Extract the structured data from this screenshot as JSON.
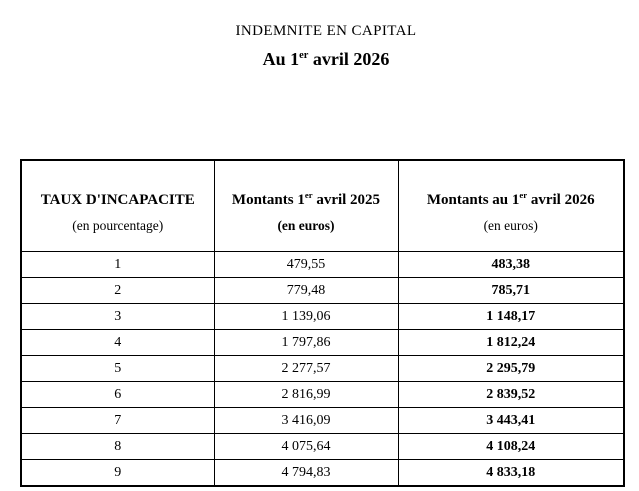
{
  "header": {
    "title": "INDEMNITE EN CAPITAL",
    "subtitle_prefix": "Au 1",
    "subtitle_sup": "er",
    "subtitle_suffix": " avril 2026"
  },
  "table": {
    "columns": [
      {
        "title": "TAUX D'INCAPACITE",
        "subtitle": "(en pourcentage)"
      },
      {
        "title_prefix": "Montants 1",
        "title_sup": "er",
        "title_suffix": " avril 2025",
        "subtitle": "(en euros)"
      },
      {
        "title_prefix": "Montants au 1",
        "title_sup": "er",
        "title_suffix": " avril 2026",
        "subtitle": "(en euros)"
      }
    ],
    "rows": [
      {
        "taux": "1",
        "amount_2025": "479,55",
        "amount_2026": "483,38"
      },
      {
        "taux": "2",
        "amount_2025": "779,48",
        "amount_2026": "785,71"
      },
      {
        "taux": "3",
        "amount_2025": "1 139,06",
        "amount_2026": "1 148,17"
      },
      {
        "taux": "4",
        "amount_2025": "1 797,86",
        "amount_2026": "1 812,24"
      },
      {
        "taux": "5",
        "amount_2025": "2 277,57",
        "amount_2026": "2 295,79"
      },
      {
        "taux": "6",
        "amount_2025": "2 816,99",
        "amount_2026": "2 839,52"
      },
      {
        "taux": "7",
        "amount_2025": "3 416,09",
        "amount_2026": "3 443,41"
      },
      {
        "taux": "8",
        "amount_2025": "4 075,64",
        "amount_2026": "4 108,24"
      },
      {
        "taux": "9",
        "amount_2025": "4 794,83",
        "amount_2026": "4 833,18"
      }
    ]
  }
}
